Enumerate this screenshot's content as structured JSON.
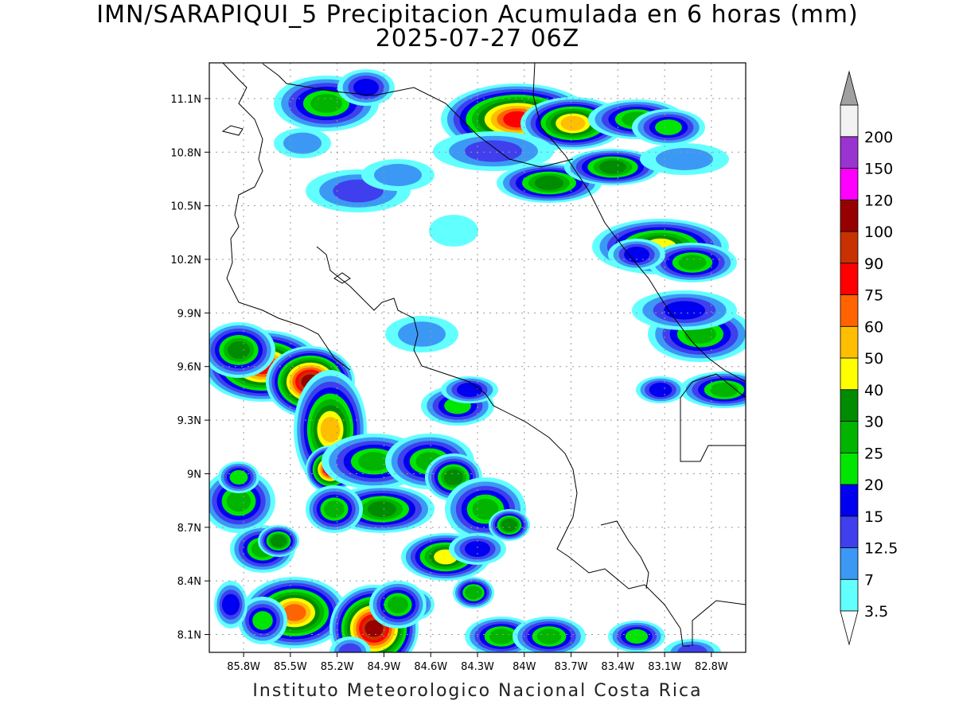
{
  "title": {
    "line1": "IMN/SARAPIQUI_5 Precipitacion Acumulada en 6 horas (mm)",
    "line2": "2025-07-27 06Z"
  },
  "footer": "Instituto Meteorologico Nacional Costa Rica",
  "map": {
    "lon_range": [
      -86.02,
      -82.58
    ],
    "lat_range": [
      8.0,
      11.3
    ],
    "lon_ticks": [
      {
        "value": -85.8,
        "label": "85.8W"
      },
      {
        "value": -85.5,
        "label": "85.5W"
      },
      {
        "value": -85.2,
        "label": "85.2W"
      },
      {
        "value": -84.9,
        "label": "84.9W"
      },
      {
        "value": -84.6,
        "label": "84.6W"
      },
      {
        "value": -84.3,
        "label": "84.3W"
      },
      {
        "value": -84.0,
        "label": "84W"
      },
      {
        "value": -83.7,
        "label": "83.7W"
      },
      {
        "value": -83.4,
        "label": "83.4W"
      },
      {
        "value": -83.1,
        "label": "83.1W"
      },
      {
        "value": -82.8,
        "label": "82.8W"
      }
    ],
    "lat_ticks": [
      {
        "value": 11.1,
        "label": "11.1N"
      },
      {
        "value": 10.8,
        "label": "10.8N"
      },
      {
        "value": 10.5,
        "label": "10.5N"
      },
      {
        "value": 10.2,
        "label": "10.2N"
      },
      {
        "value": 9.9,
        "label": "9.9N"
      },
      {
        "value": 9.6,
        "label": "9.6N"
      },
      {
        "value": 9.3,
        "label": "9.3N"
      },
      {
        "value": 9.0,
        "label": "9N"
      },
      {
        "value": 8.7,
        "label": "8.7N"
      },
      {
        "value": 8.4,
        "label": "8.4N"
      },
      {
        "value": 8.1,
        "label": "8.1N"
      }
    ],
    "grid": true
  },
  "colorbar": {
    "units": "mm",
    "levels": [
      {
        "label": "3.5",
        "color": "#62ffff"
      },
      {
        "label": "7",
        "color": "#3b99f5"
      },
      {
        "label": "12.5",
        "color": "#3f3fed"
      },
      {
        "label": "15",
        "color": "#0000f0"
      },
      {
        "label": "20",
        "color": "#00e600"
      },
      {
        "label": "25",
        "color": "#00b400"
      },
      {
        "label": "30",
        "color": "#008c00"
      },
      {
        "label": "40",
        "color": "#ffff00"
      },
      {
        "label": "50",
        "color": "#ffbe00"
      },
      {
        "label": "60",
        "color": "#ff6400"
      },
      {
        "label": "75",
        "color": "#ff0000"
      },
      {
        "label": "90",
        "color": "#c83200"
      },
      {
        "label": "100",
        "color": "#960000"
      },
      {
        "label": "120",
        "color": "#ff00ff"
      },
      {
        "label": "150",
        "color": "#9a34d0"
      },
      {
        "label": "200",
        "color": "#f2f2f2"
      }
    ],
    "over_color": "#a0a0a0",
    "under_color": "#ffffff"
  }
}
